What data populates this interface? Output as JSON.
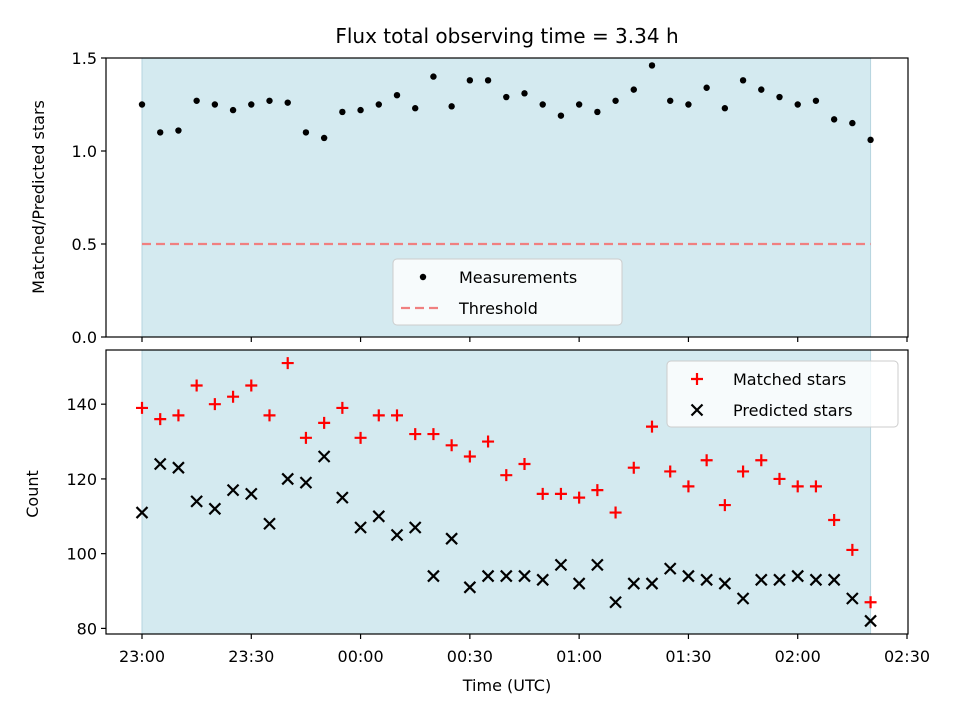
{
  "chart_data": [
    {
      "type": "scatter",
      "title": "Flux total observing time = 3.34 h",
      "xlabel": "",
      "ylabel": "Matched/Predicted stars",
      "x_tick_labels": [
        "23:00",
        "23:30",
        "00:00",
        "00:30",
        "01:00",
        "01:30",
        "02:00",
        "02:30"
      ],
      "y_ticks": [
        0.0,
        0.5,
        1.0,
        1.5
      ],
      "y_tick_labels": [
        "0.0",
        "0.5",
        "1.0",
        "1.5"
      ],
      "ylim": [
        0.0,
        1.5
      ],
      "shaded_span": {
        "from": "23:00",
        "to": "02:20",
        "color": "#d4eaf0"
      },
      "legend": {
        "placement": "lower center",
        "entries": [
          "Measurements",
          "Threshold"
        ]
      },
      "series": [
        {
          "name": "Measurements",
          "marker": "dot",
          "color": "#000000",
          "times": [
            "23:00",
            "23:05",
            "23:10",
            "23:15",
            "23:20",
            "23:25",
            "23:30",
            "23:35",
            "23:40",
            "23:45",
            "23:50",
            "23:55",
            "00:00",
            "00:05",
            "00:10",
            "00:15",
            "00:20",
            "00:25",
            "00:30",
            "00:35",
            "00:40",
            "00:45",
            "00:50",
            "00:55",
            "01:00",
            "01:05",
            "01:10",
            "01:15",
            "01:20",
            "01:25",
            "01:30",
            "01:35",
            "01:40",
            "01:45",
            "01:50",
            "01:55",
            "02:00",
            "02:05",
            "02:10",
            "02:15",
            "02:20"
          ],
          "values": [
            1.25,
            1.1,
            1.11,
            1.27,
            1.25,
            1.22,
            1.25,
            1.27,
            1.26,
            1.1,
            1.07,
            1.21,
            1.22,
            1.25,
            1.3,
            1.23,
            1.4,
            1.24,
            1.38,
            1.38,
            1.29,
            1.31,
            1.25,
            1.19,
            1.25,
            1.21,
            1.27,
            1.33,
            1.46,
            1.27,
            1.25,
            1.34,
            1.23,
            1.38,
            1.33,
            1.29,
            1.25,
            1.27,
            1.17,
            1.15,
            1.06
          ]
        },
        {
          "name": "Threshold",
          "marker": "dashed-line",
          "color": "#f08080",
          "times": [
            "23:00",
            "02:20"
          ],
          "values": [
            0.5,
            0.5
          ]
        }
      ]
    },
    {
      "type": "scatter",
      "title": "",
      "xlabel": "Time (UTC)",
      "ylabel": "Count",
      "x_tick_labels": [
        "23:00",
        "23:30",
        "00:00",
        "00:30",
        "01:00",
        "01:30",
        "02:00",
        "02:30"
      ],
      "y_ticks": [
        80,
        100,
        120,
        140
      ],
      "y_tick_labels": [
        "80",
        "100",
        "120",
        "140"
      ],
      "ylim": [
        78.5,
        154.5
      ],
      "shaded_span": {
        "from": "23:00",
        "to": "02:20",
        "color": "#d4eaf0"
      },
      "legend": {
        "placement": "upper right",
        "entries": [
          "Matched stars",
          "Predicted stars"
        ]
      },
      "series": [
        {
          "name": "Matched stars",
          "marker": "plus",
          "color": "#ff0000",
          "times": [
            "23:00",
            "23:05",
            "23:10",
            "23:15",
            "23:20",
            "23:25",
            "23:30",
            "23:35",
            "23:40",
            "23:45",
            "23:50",
            "23:55",
            "00:00",
            "00:05",
            "00:10",
            "00:15",
            "00:20",
            "00:25",
            "00:30",
            "00:35",
            "00:40",
            "00:45",
            "00:50",
            "00:55",
            "01:00",
            "01:05",
            "01:10",
            "01:15",
            "01:20",
            "01:25",
            "01:30",
            "01:35",
            "01:40",
            "01:45",
            "01:50",
            "01:55",
            "02:00",
            "02:05",
            "02:10",
            "02:15",
            "02:20"
          ],
          "values": [
            139,
            136,
            137,
            145,
            140,
            142,
            145,
            137,
            151,
            131,
            135,
            139,
            131,
            137,
            137,
            132,
            132,
            129,
            126,
            130,
            121,
            124,
            116,
            116,
            115,
            117,
            111,
            123,
            134,
            122,
            118,
            125,
            113,
            122,
            125,
            120,
            118,
            118,
            109,
            101,
            87
          ]
        },
        {
          "name": "Predicted stars",
          "marker": "x",
          "color": "#000000",
          "times": [
            "23:00",
            "23:05",
            "23:10",
            "23:15",
            "23:20",
            "23:25",
            "23:30",
            "23:35",
            "23:40",
            "23:45",
            "23:50",
            "23:55",
            "00:00",
            "00:05",
            "00:10",
            "00:15",
            "00:20",
            "00:25",
            "00:30",
            "00:35",
            "00:40",
            "00:45",
            "00:50",
            "00:55",
            "01:00",
            "01:05",
            "01:10",
            "01:15",
            "01:20",
            "01:25",
            "01:30",
            "01:35",
            "01:40",
            "01:45",
            "01:50",
            "01:55",
            "02:00",
            "02:05",
            "02:10",
            "02:15",
            "02:20"
          ],
          "values": [
            111,
            124,
            123,
            114,
            112,
            117,
            116,
            108,
            120,
            119,
            126,
            115,
            107,
            110,
            105,
            107,
            94,
            104,
            91,
            94,
            94,
            94,
            93,
            97,
            92,
            97,
            87,
            92,
            92,
            96,
            94,
            93,
            92,
            88,
            93,
            93,
            94,
            93,
            93,
            88,
            82
          ]
        }
      ]
    }
  ]
}
